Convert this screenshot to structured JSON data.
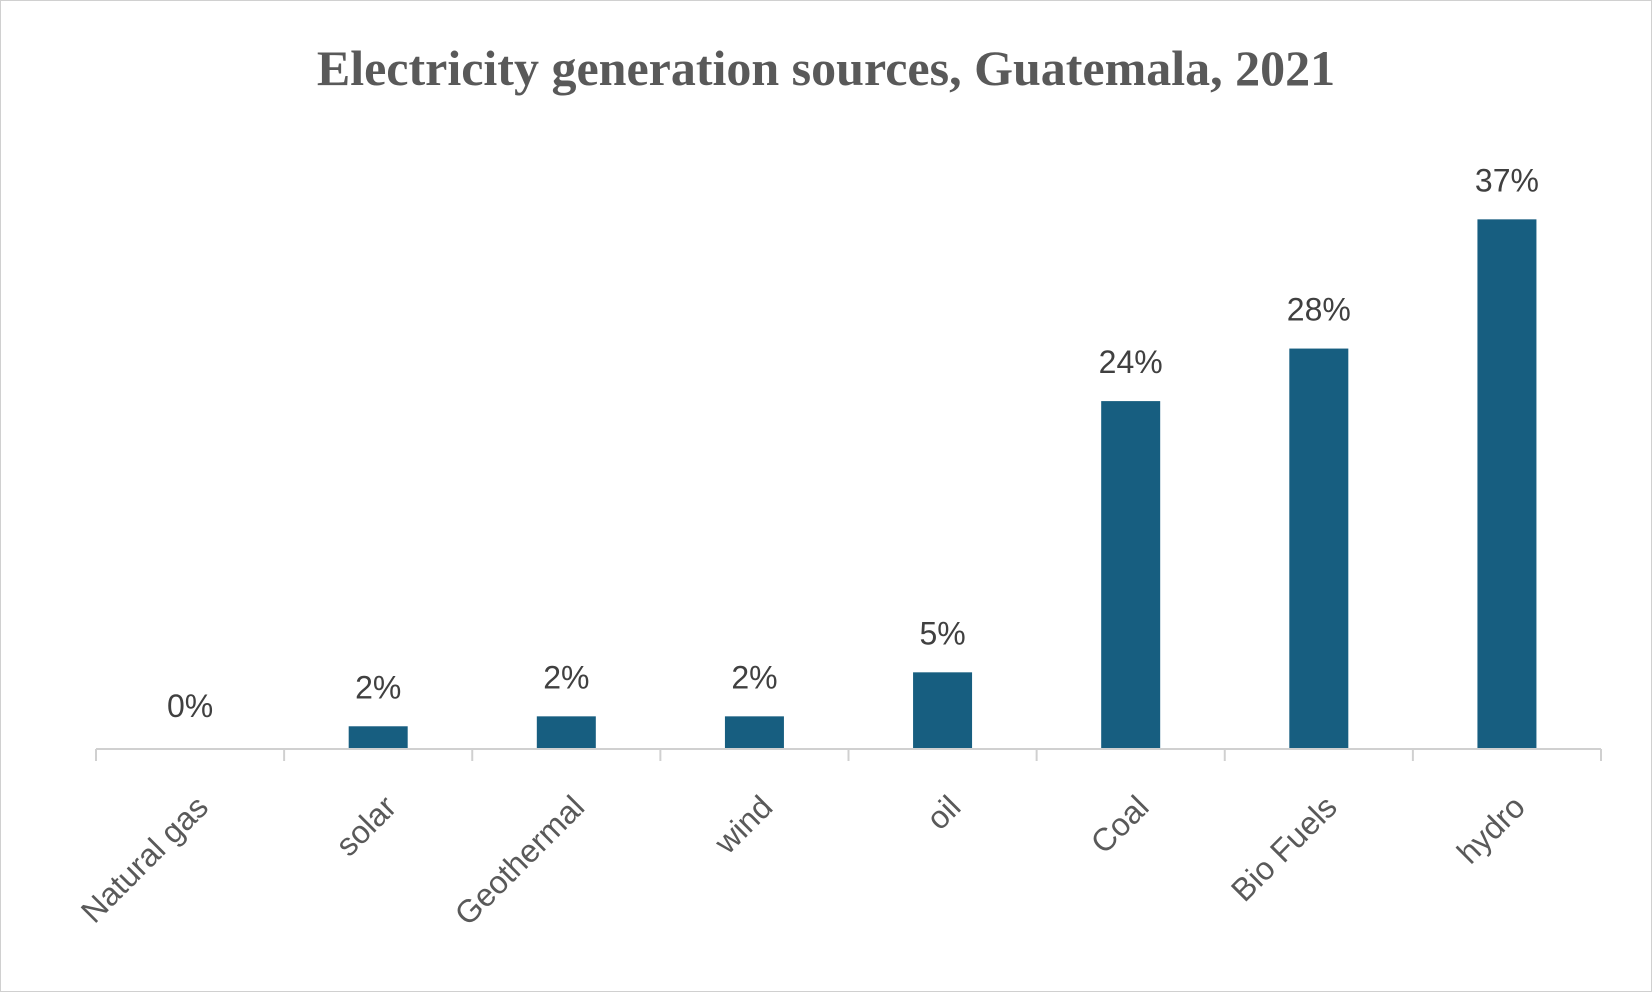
{
  "chart_data": {
    "type": "bar",
    "title": "Electricity generation sources, Guatemala, 2021",
    "xlabel": "",
    "ylabel": "",
    "categories": [
      "Natural gas",
      "solar",
      "Geothermal",
      "wind",
      "oil",
      "Coal",
      "Bio Fuels",
      "hydro"
    ],
    "values": [
      0,
      1.6,
      2.3,
      2.3,
      5.4,
      24.5,
      28.2,
      37.3
    ],
    "data_labels": [
      "0%",
      "2%",
      "2%",
      "2%",
      "5%",
      "24%",
      "28%",
      "37%"
    ],
    "unit": "%",
    "ylim": [
      0,
      40
    ],
    "grid": false,
    "legend": "none",
    "colors": {
      "bar": "#175e80",
      "axis": "#d0d0d0",
      "title": "#595959"
    }
  }
}
